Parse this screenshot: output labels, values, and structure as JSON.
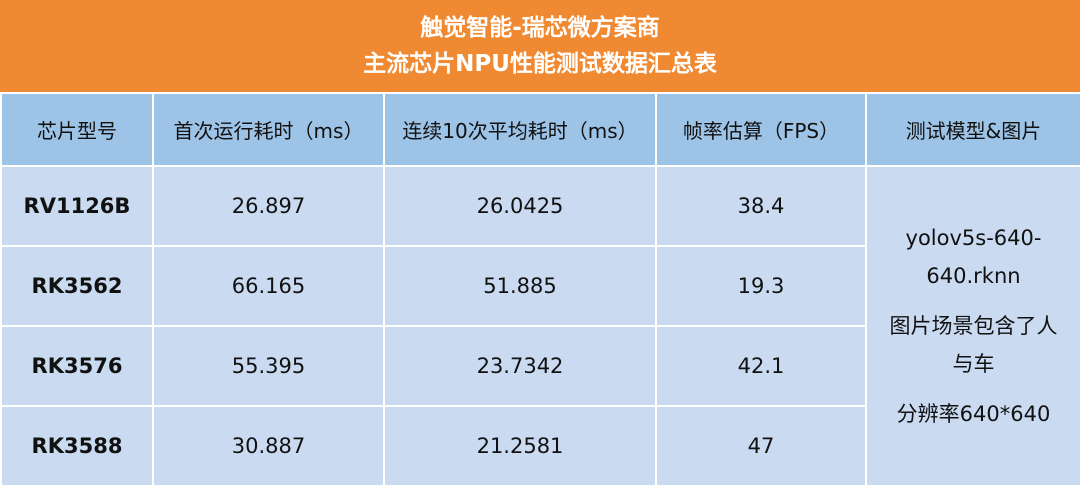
{
  "header": {
    "title_lines": [
      "触觉智能-瑞芯微方案商",
      "主流芯片NPU性能测试数据汇总表"
    ]
  },
  "table": {
    "columns": [
      "芯片型号",
      "首次运行耗时（ms）",
      "连续10次平均耗时（ms）",
      "帧率估算（FPS）",
      "测试模型&图片"
    ],
    "rows": [
      [
        "RV1126B",
        "26.897",
        "26.0425",
        "38.4"
      ],
      [
        "RK3562",
        "66.165",
        "51.885",
        "19.3"
      ],
      [
        "RK3576",
        "55.395",
        "23.7342",
        "42.1"
      ],
      [
        "RK3588",
        "30.887",
        "21.2581",
        "47"
      ]
    ],
    "merged_note": [
      "yolov5s-640-640.rknn",
      "图片场景包含了人与车",
      "分辨率640*640"
    ]
  }
}
